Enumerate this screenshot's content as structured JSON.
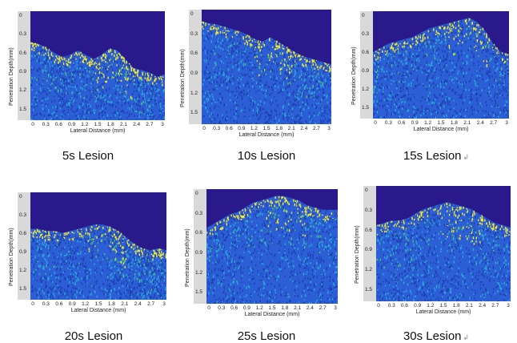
{
  "colors": {
    "background_dark": "#29198a",
    "tissue_blue": "#2c5fd6",
    "tissue_cyan": "#2aa8d8",
    "tissue_green": "#4fc37a",
    "tissue_yellow": "#f2e833"
  },
  "axis": {
    "ylabel": "Penetration Depth(mm)",
    "xlabel": "Lateral Distance (mm)",
    "yticks": [
      "0",
      "0.3",
      "0.6",
      "0.9",
      "1.2",
      "1.5"
    ],
    "xticks": [
      "0",
      "0.3",
      "0.6",
      "0.9",
      "1.2",
      "1.5",
      "1.8",
      "2.1",
      "2.4",
      "2.7",
      "3"
    ]
  },
  "panels": [
    {
      "id": "5s",
      "caption": "5s Lesion",
      "caption_mark": ""
    },
    {
      "id": "10s",
      "caption": "10s Lesion",
      "caption_mark": ""
    },
    {
      "id": "15s",
      "caption": "15s Lesion",
      "caption_mark": "↲"
    },
    {
      "id": "20s",
      "caption": "20s Lesion",
      "caption_mark": ""
    },
    {
      "id": "25s",
      "caption": "25s Lesion",
      "caption_mark": ""
    },
    {
      "id": "30s",
      "caption": "30s Lesion",
      "caption_mark": "↲"
    }
  ]
}
